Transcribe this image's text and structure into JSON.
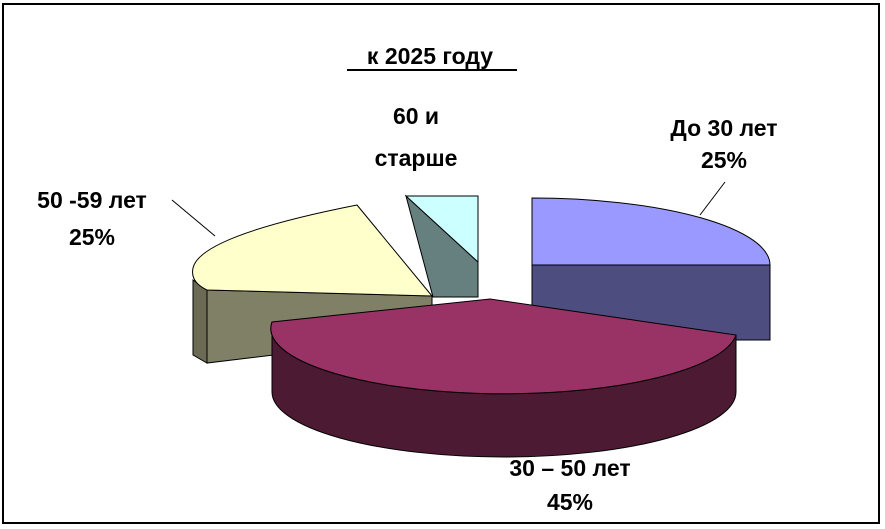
{
  "chart_data": {
    "type": "pie",
    "style": "3d-exploded",
    "title": "к 2025 году",
    "legend": "none",
    "slices": [
      {
        "name": "До 30 лет",
        "value": 25,
        "label_value": "25%",
        "top_color": "#9999ff",
        "side_color": "#4d4d80"
      },
      {
        "name": "30 – 50 лет",
        "value": 45,
        "label_value": "45%",
        "top_color": "#993366",
        "side_color": "#4d1a33"
      },
      {
        "name": "50 -59 лет",
        "value": 25,
        "label_value": "25%",
        "top_color": "#ffffcc",
        "side_color": "#808066"
      },
      {
        "name_lines": [
          "60 и",
          "старше"
        ],
        "value": 5,
        "label_value": "",
        "top_color": "#ccffff",
        "side_color": "#668080"
      }
    ]
  }
}
